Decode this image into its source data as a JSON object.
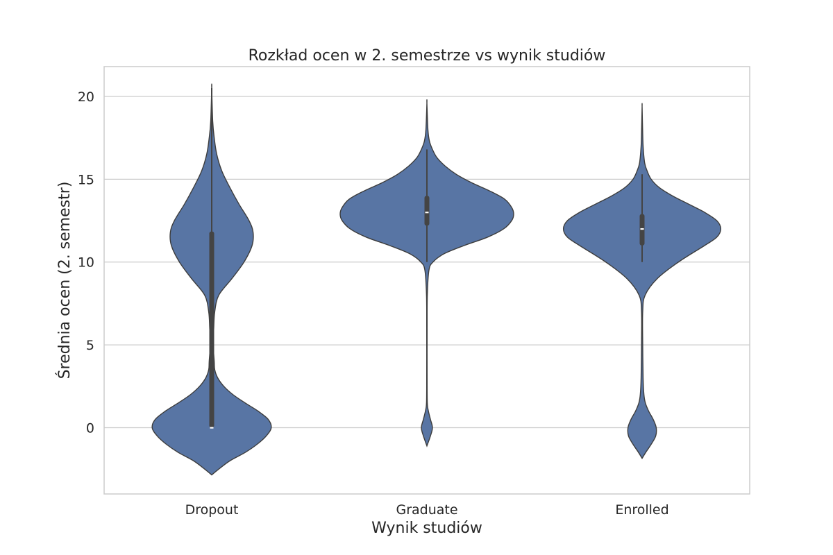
{
  "chart_data": {
    "type": "violin",
    "title": "Rozkład ocen w 2. semestrze vs wynik studiów",
    "xlabel": "Wynik studiów",
    "ylabel": "Średnia ocen (2. semestr)",
    "ylim": [
      -4.0,
      21.8
    ],
    "yticks": [
      0,
      5,
      10,
      15,
      20
    ],
    "grid": "horizontal",
    "fill_color": "#5875a4",
    "edge_color": "#3d3d3d",
    "box_color": "#444444",
    "median_color": "#ffffff",
    "categories": [
      "Dropout",
      "Graduate",
      "Enrolled"
    ],
    "violins": [
      {
        "name": "Dropout",
        "range": [
          -2.85,
          20.5
        ],
        "q1": 0.0,
        "median": 0.0,
        "q3": 11.85,
        "whisker_low": 0.0,
        "whisker_high": 20.5,
        "density": [
          [
            -2.85,
            0.0
          ],
          [
            -2.5,
            0.07
          ],
          [
            -2.0,
            0.18
          ],
          [
            -1.5,
            0.33
          ],
          [
            -1.0,
            0.45
          ],
          [
            -0.5,
            0.54
          ],
          [
            0.0,
            0.59
          ],
          [
            0.5,
            0.56
          ],
          [
            1.0,
            0.46
          ],
          [
            1.5,
            0.33
          ],
          [
            2.0,
            0.21
          ],
          [
            2.5,
            0.12
          ],
          [
            3.0,
            0.06
          ],
          [
            3.5,
            0.03
          ],
          [
            4.0,
            0.025
          ],
          [
            5.0,
            0.015
          ],
          [
            6.0,
            0.02
          ],
          [
            7.0,
            0.03
          ],
          [
            8.0,
            0.07
          ],
          [
            9.0,
            0.2
          ],
          [
            10.0,
            0.32
          ],
          [
            11.0,
            0.4
          ],
          [
            11.8,
            0.41
          ],
          [
            12.5,
            0.37
          ],
          [
            13.5,
            0.27
          ],
          [
            14.5,
            0.18
          ],
          [
            15.5,
            0.1
          ],
          [
            16.5,
            0.05
          ],
          [
            17.5,
            0.025
          ],
          [
            18.5,
            0.01
          ],
          [
            20.5,
            0.0
          ]
        ]
      },
      {
        "name": "Graduate",
        "range": [
          -1.1,
          19.6
        ],
        "q1": 12.2,
        "median": 13.0,
        "q3": 14.0,
        "whisker_low": 10.0,
        "whisker_high": 16.8,
        "density": [
          [
            -1.1,
            0.0
          ],
          [
            -0.5,
            0.035
          ],
          [
            0.0,
            0.055
          ],
          [
            0.5,
            0.035
          ],
          [
            1.0,
            0.015
          ],
          [
            1.5,
            0.004
          ],
          [
            3.0,
            0.002
          ],
          [
            6.0,
            0.002
          ],
          [
            8.0,
            0.004
          ],
          [
            9.5,
            0.02
          ],
          [
            10.0,
            0.06
          ],
          [
            10.5,
            0.17
          ],
          [
            11.0,
            0.37
          ],
          [
            11.5,
            0.6
          ],
          [
            12.0,
            0.76
          ],
          [
            12.5,
            0.84
          ],
          [
            12.9,
            0.86
          ],
          [
            13.3,
            0.84
          ],
          [
            13.8,
            0.77
          ],
          [
            14.3,
            0.62
          ],
          [
            14.8,
            0.44
          ],
          [
            15.3,
            0.29
          ],
          [
            15.8,
            0.18
          ],
          [
            16.3,
            0.1
          ],
          [
            16.8,
            0.055
          ],
          [
            17.3,
            0.025
          ],
          [
            18.0,
            0.01
          ],
          [
            19.6,
            0.0
          ]
        ]
      },
      {
        "name": "Enrolled",
        "range": [
          -1.85,
          19.4
        ],
        "q1": 11.0,
        "median": 12.0,
        "q3": 12.9,
        "whisker_low": 10.0,
        "whisker_high": 15.3,
        "density": [
          [
            -1.85,
            0.0
          ],
          [
            -1.5,
            0.035
          ],
          [
            -1.0,
            0.09
          ],
          [
            -0.5,
            0.135
          ],
          [
            0.0,
            0.14
          ],
          [
            0.5,
            0.11
          ],
          [
            1.0,
            0.065
          ],
          [
            1.5,
            0.032
          ],
          [
            2.0,
            0.018
          ],
          [
            3.0,
            0.01
          ],
          [
            5.0,
            0.006
          ],
          [
            7.0,
            0.006
          ],
          [
            8.0,
            0.03
          ],
          [
            9.0,
            0.15
          ],
          [
            10.0,
            0.36
          ],
          [
            11.0,
            0.62
          ],
          [
            11.5,
            0.74
          ],
          [
            12.0,
            0.78
          ],
          [
            12.5,
            0.74
          ],
          [
            13.0,
            0.62
          ],
          [
            13.5,
            0.46
          ],
          [
            14.0,
            0.3
          ],
          [
            14.5,
            0.17
          ],
          [
            15.0,
            0.09
          ],
          [
            15.5,
            0.05
          ],
          [
            16.0,
            0.025
          ],
          [
            17.0,
            0.01
          ],
          [
            18.0,
            0.005
          ],
          [
            19.4,
            0.0
          ]
        ]
      }
    ]
  }
}
